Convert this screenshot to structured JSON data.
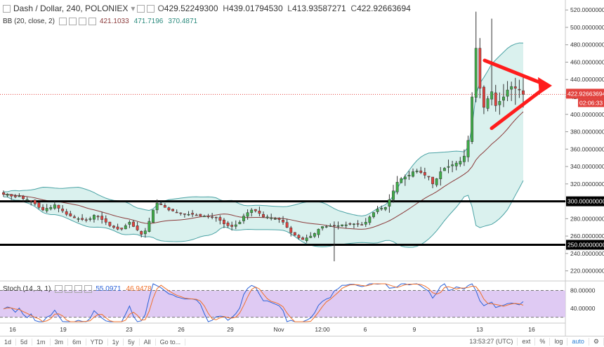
{
  "header": {
    "symbol": "Dash / Dollar, 240, POLONIEX",
    "open_label": "O",
    "open": "429.52249300",
    "high_label": "H",
    "high": "439.01794530",
    "low_label": "L",
    "low": "413.93587271",
    "close_label": "C",
    "close": "422.92663694"
  },
  "bb": {
    "label": "BB (20, close, 2)",
    "basis": "421.1033",
    "upper": "471.7196",
    "lower": "370.4871"
  },
  "stoch": {
    "label": "Stoch (14, 3, 1)",
    "k": "55.0971",
    "d": "46.9478"
  },
  "colors": {
    "up": "#3fae49",
    "down": "#e2423e",
    "band": "#aee0da",
    "band_line": "#4ba3a5",
    "basis": "#8b3a3a",
    "stoch_bg": "#d9c1f1",
    "stoch_k": "#2b62d8",
    "stoch_d": "#f0702b",
    "arrow": "#ff1c1c",
    "price_tag": "#e2423e"
  },
  "price_tag": {
    "price": "422.92663694",
    "countdown": "02:06:33"
  },
  "toolbar": {
    "ranges": [
      "1d",
      "5d",
      "1m",
      "3m",
      "6m",
      "YTD",
      "1y",
      "5y",
      "All"
    ],
    "goto": "Go to...",
    "time": "13:53:27 (UTC)",
    "ext": "ext",
    "pct": "%",
    "log": "log",
    "auto": "auto"
  },
  "chart_data": [
    {
      "type": "candlestick",
      "title": "Dash / Dollar, 240, POLONIEX",
      "x_ticks": [
        "16",
        "19",
        "23",
        "26",
        "29",
        "Nov",
        "12:00",
        "6",
        "9",
        "13",
        "16"
      ],
      "y_ticks": [
        220,
        240,
        260,
        280,
        300,
        320,
        340,
        360,
        380,
        400,
        420,
        440,
        460,
        480,
        500,
        520
      ],
      "y_tick_labels": [
        "220.00000000",
        "240.00000000",
        "260.00000000",
        "280.00000000",
        "300.00000000",
        "320.00000000",
        "340.00000000",
        "360.00000000",
        "380.00000000",
        "400.00000000",
        "420.00000000",
        "440.00000000",
        "460.00000000",
        "480.00000000",
        "500.00000000",
        "520.00000000"
      ],
      "ylim": [
        210,
        525
      ],
      "horizontal_levels": [
        {
          "value": 300,
          "label": "300.00000000"
        },
        {
          "value": 250,
          "label": "250.00000000"
        }
      ],
      "last_price": 422.92663694,
      "close_path": [
        308,
        308,
        306,
        305,
        306,
        303,
        302,
        300,
        297,
        293,
        290,
        292,
        293,
        296,
        292,
        289,
        285,
        283,
        281,
        280,
        279,
        278,
        280,
        284,
        282,
        279,
        276,
        272,
        270,
        268,
        268,
        272,
        276,
        271,
        267,
        262,
        266,
        277,
        290,
        298,
        296,
        293,
        290,
        289,
        287,
        286,
        285,
        285,
        285,
        284,
        283,
        283,
        282,
        282,
        281,
        278,
        274,
        272,
        271,
        273,
        276,
        283,
        287,
        290,
        289,
        286,
        282,
        282,
        281,
        280,
        279,
        276,
        270,
        264,
        261,
        258,
        256,
        258,
        260,
        263,
        268,
        271,
        271,
        272,
        272,
        272,
        273,
        273,
        274,
        274,
        274,
        273,
        276,
        282,
        287,
        291,
        292,
        293,
        302,
        312,
        322,
        326,
        328,
        330,
        334,
        335,
        333,
        330,
        328,
        320,
        326,
        334,
        338,
        340,
        342,
        344,
        346,
        352,
        370,
        420,
        476,
        430,
        408,
        418,
        426,
        410,
        415,
        420,
        428,
        432,
        430,
        428,
        423
      ],
      "overlays": [
        "Bollinger Bands (20, close, 2)"
      ]
    },
    {
      "type": "line",
      "title": "Stoch (14, 3, 1)",
      "y_ticks": [
        40,
        80
      ],
      "y_tick_labels": [
        "40.00000",
        "80.00000"
      ],
      "ylim": [
        10,
        95
      ],
      "bands": [
        20,
        80
      ],
      "series": [
        {
          "name": "%K",
          "last": 55.0971
        },
        {
          "name": "%D",
          "last": 46.9478
        }
      ]
    }
  ]
}
